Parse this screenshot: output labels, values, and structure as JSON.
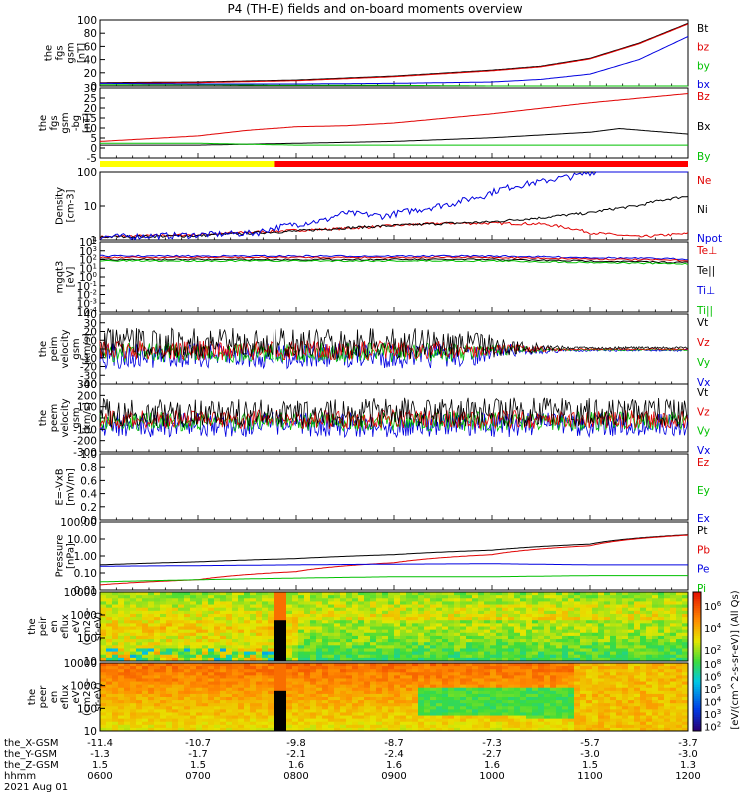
{
  "title": "P4 (TH-E) fields and on-board moments overview",
  "chart_data": {
    "type": "line",
    "x_time_ticks": [
      "0600",
      "0700",
      "0800",
      "0900",
      "1000",
      "1100",
      "1200"
    ],
    "orbit_labels": [
      "the_X-GSM",
      "the_Y-GSM",
      "the_Z-GSM",
      "hhmm",
      "2021 Aug 01"
    ],
    "orbit": {
      "X": [
        "-11.4",
        "-10.7",
        "-9.8",
        "-8.7",
        "-7.3",
        "-5.7",
        "-3.7"
      ],
      "Y": [
        "-1.3",
        "-1.7",
        "-2.1",
        "-2.4",
        "-2.7",
        "-3.0",
        "-3.0"
      ],
      "Z": [
        "1.5",
        "1.5",
        "1.6",
        "1.6",
        "1.6",
        "1.5",
        "1.3"
      ]
    },
    "colors": {
      "black": "#000000",
      "red": "#e00000",
      "green": "#00c000",
      "blue": "#0000e0",
      "flag_yellow": "#ffff00",
      "flag_red": "#ff0000"
    },
    "panels": [
      {
        "id": "fgs_mag",
        "ylabel": [
          "the",
          "fgs",
          "gsm",
          "[nT]"
        ],
        "yticks": [
          "100",
          "80",
          "60",
          "40",
          "20",
          "0"
        ],
        "ylim": [
          0,
          100
        ],
        "series": [
          {
            "name": "Bt",
            "color": "black",
            "x": [
              6,
              7,
              8,
              9,
              10,
              10.5,
              11,
              11.5,
              12
            ],
            "y": [
              5,
              6,
              9,
              15,
              24,
              30,
              42,
              65,
              95
            ]
          },
          {
            "name": "bz",
            "color": "red",
            "x": [
              6,
              7,
              8,
              9,
              10,
              10.5,
              11,
              11.5,
              12
            ],
            "y": [
              4,
              5,
              8,
              14,
              23,
              29,
              41,
              64,
              94
            ]
          },
          {
            "name": "by",
            "color": "green",
            "x": [
              6,
              7,
              8,
              9,
              10,
              11,
              12
            ],
            "y": [
              2,
              2,
              1,
              1,
              0,
              0,
              -2
            ]
          },
          {
            "name": "bx",
            "color": "blue",
            "x": [
              6,
              7,
              8,
              9,
              10,
              10.5,
              11,
              11.5,
              12
            ],
            "y": [
              4,
              3,
              3,
              4,
              6,
              10,
              18,
              40,
              75
            ]
          }
        ]
      },
      {
        "id": "fgs_dsl",
        "ylabel": [
          "the",
          "fgs",
          "gsm",
          "-bg",
          "[nT]"
        ],
        "yticks": [
          "30",
          "25",
          "20",
          "15",
          "10",
          "5",
          "0",
          "-5"
        ],
        "ylim": [
          -8,
          30
        ],
        "series": [
          {
            "name": "Bz",
            "color": "red",
            "x": [
              6,
              7,
              7.5,
              8,
              8.5,
              9,
              10,
              11,
              12
            ],
            "y": [
              1,
              4,
              7,
              9,
              9.5,
              11,
              16,
              22,
              27
            ]
          },
          {
            "name": "Bx",
            "color": "black",
            "x": [
              6,
              7,
              8,
              9,
              10,
              11,
              11.3,
              12
            ],
            "y": [
              -1,
              -1,
              0,
              1,
              3,
              6,
              8,
              5
            ]
          },
          {
            "name": "By",
            "color": "green",
            "x": [
              6,
              7,
              8,
              9,
              10,
              11,
              12
            ],
            "y": [
              0,
              0,
              -1,
              -1,
              -1,
              -1,
              -1
            ]
          }
        ]
      },
      {
        "id": "density",
        "ylabel": [
          "Density",
          "[cm-3]"
        ],
        "yticks": [
          "100",
          "10",
          "1"
        ],
        "log": true,
        "ylim": [
          0.3,
          200
        ],
        "series": [
          {
            "name": "Ne",
            "color": "red",
            "x": [
              6,
              7,
              7.8,
              8.5,
              9,
              9.5,
              10,
              10.5,
              11,
              11.5,
              12
            ],
            "y": [
              0.4,
              0.5,
              0.7,
              0.9,
              1.2,
              1.5,
              1.5,
              1.4,
              0.6,
              0.4,
              0.55
            ]
          },
          {
            "name": "Ni",
            "color": "black",
            "x": [
              6,
              7,
              8,
              9,
              10,
              10.5,
              11,
              11.5,
              12
            ],
            "y": [
              0.4,
              0.45,
              0.7,
              1.2,
              1.7,
              2.5,
              4,
              8,
              20
            ]
          },
          {
            "name": "Npot",
            "color": "blue",
            "x": [
              6,
              7,
              7.6,
              7.8,
              8.3,
              8.5,
              8.9,
              9.3,
              9.6,
              9.9,
              10.2,
              10.5,
              10.9,
              11.2
            ],
            "y": [
              0.4,
              0.5,
              0.6,
              1,
              2,
              4,
              3,
              6,
              10,
              20,
              50,
              80,
              150,
              300
            ]
          }
        ]
      },
      {
        "id": "temperature",
        "ylabel": [
          "mgqt3",
          "[eV]"
        ],
        "yticks": [
          "10^4",
          "10^3",
          "10^2",
          "10^1",
          "10^0",
          "10^-1",
          "10^-2",
          "10^-3",
          "10^-4"
        ],
        "log": true,
        "series": [
          {
            "name": "Te⊥",
            "color": "red"
          },
          {
            "name": "Te||",
            "color": "black"
          },
          {
            "name": "Ti⊥",
            "color": "blue"
          },
          {
            "name": "Ti||",
            "color": "green"
          }
        ]
      },
      {
        "id": "peim_velocity",
        "ylabel": [
          "the",
          "peim",
          "velocity",
          "gsm",
          "[km/s]"
        ],
        "yticks": [
          "40",
          "30",
          "20",
          "10",
          "0",
          "-10",
          "-20",
          "-30",
          "-40"
        ],
        "ylim": [
          -40,
          40
        ],
        "series": [
          {
            "name": "Vt",
            "color": "black"
          },
          {
            "name": "Vz",
            "color": "red"
          },
          {
            "name": "Vy",
            "color": "green"
          },
          {
            "name": "Vx",
            "color": "blue"
          }
        ]
      },
      {
        "id": "peem_velocity",
        "ylabel": [
          "the",
          "peem",
          "velocity",
          "gsm",
          "[km/s]"
        ],
        "yticks": [
          "300",
          "200",
          "100",
          "0",
          "-100",
          "-200",
          "-300"
        ],
        "ylim": [
          -300,
          300
        ],
        "series": [
          {
            "name": "Vt",
            "color": "black"
          },
          {
            "name": "Vz",
            "color": "red"
          },
          {
            "name": "Vy",
            "color": "green"
          },
          {
            "name": "Vx",
            "color": "blue"
          }
        ]
      },
      {
        "id": "efield",
        "ylabel": [
          "E=-VxB",
          "[mV/m]"
        ],
        "yticks": [
          "1.0",
          "0.8",
          "0.6",
          "0.4",
          "0.2",
          "0.0"
        ],
        "ylim": [
          0,
          1
        ],
        "series": [
          {
            "name": "Ez",
            "color": "red"
          },
          {
            "name": "Ey",
            "color": "green"
          },
          {
            "name": "Ex",
            "color": "blue"
          }
        ]
      },
      {
        "id": "pressure",
        "ylabel": [
          "Pressure",
          "[nPa]"
        ],
        "yticks": [
          "100.00",
          "10.00",
          "1.00",
          "0.10",
          "0.01"
        ],
        "log": true,
        "ylim": [
          0.01,
          100
        ],
        "series": [
          {
            "name": "Pt",
            "color": "black",
            "x": [
              6,
              7,
              8,
              9,
              10,
              11,
              12
            ],
            "y": [
              0.3,
              0.45,
              0.7,
              1.2,
              2.2,
              5,
              18
            ]
          },
          {
            "name": "Pb",
            "color": "red",
            "x": [
              6,
              7,
              8,
              9,
              10,
              11,
              12
            ],
            "y": [
              0.02,
              0.04,
              0.12,
              0.4,
              1.2,
              4,
              17
            ]
          },
          {
            "name": "Pe",
            "color": "blue",
            "x": [
              6,
              7,
              8,
              9,
              10,
              11,
              12
            ],
            "y": [
              0.25,
              0.27,
              0.3,
              0.33,
              0.35,
              0.3,
              0.3
            ]
          },
          {
            "name": "Pi",
            "color": "green",
            "x": [
              6,
              7,
              8,
              9,
              10,
              11,
              12
            ],
            "y": [
              0.03,
              0.04,
              0.05,
              0.06,
              0.06,
              0.07,
              0.07
            ]
          }
        ]
      },
      {
        "id": "peir_spec",
        "ylabel": [
          "the",
          "peir",
          "en",
          "eflux",
          "eV",
          "(cm2-s-",
          "sr-eV)"
        ],
        "yticks": [
          "10000",
          "1000",
          "100",
          "10"
        ],
        "type": "heatmap"
      },
      {
        "id": "peer_spec",
        "ylabel": [
          "the",
          "peer",
          "en",
          "eflux",
          "eV",
          "(cm2-s-",
          "sr-eV)"
        ],
        "yticks": [
          "10000",
          "1000",
          "100",
          "10"
        ],
        "type": "heatmap"
      }
    ],
    "colorbar": {
      "label": "[eV/(cm^2-s-sr-eV)] (All Qs)",
      "ticks_top": [
        "10^6",
        "10^4",
        "10^2"
      ],
      "ticks_bottom": [
        "10^8",
        "10^6",
        "10^5",
        "10^4",
        "10^3",
        "10^2"
      ]
    }
  }
}
